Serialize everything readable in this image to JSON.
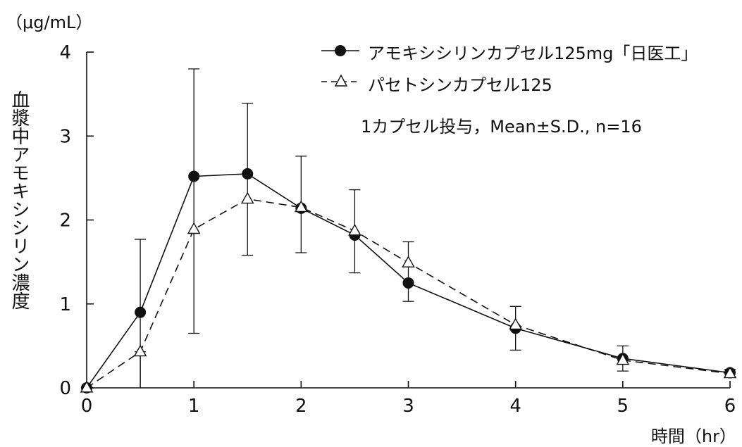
{
  "chart_data": {
    "type": "line",
    "unit_label": "（μg/mL）",
    "ylabel": "血漿中アモキシシリン濃度",
    "xlabel": "時間（hr）",
    "xlim": [
      0,
      6
    ],
    "ylim": [
      0,
      4
    ],
    "x_ticks": [
      "0",
      "1",
      "2",
      "3",
      "4",
      "5",
      "6"
    ],
    "y_ticks": [
      "0",
      "1",
      "2",
      "3",
      "4"
    ],
    "note": "1カプセル投与，Mean±S.D., n=16",
    "series": [
      {
        "name": "アモキシシリンカプセル125mg「日医工」",
        "marker": "filled-circle",
        "line": "solid",
        "color": "#111111",
        "x": [
          0,
          0.5,
          1,
          1.5,
          2,
          2.5,
          3,
          4,
          5,
          6
        ],
        "y": [
          0,
          0.9,
          2.52,
          2.55,
          2.14,
          1.82,
          1.25,
          0.71,
          0.35,
          0.18
        ],
        "err_upper": [
          0,
          1.77,
          3.8,
          3.39,
          2.76,
          2.36,
          1.74,
          0.97,
          0.5,
          0.22
        ],
        "err_lower": [
          0,
          0,
          0.65,
          1.58,
          1.61,
          1.37,
          1.03,
          0.45,
          0.2,
          0.13
        ]
      },
      {
        "name": "パセトシンカプセル125",
        "marker": "open-triangle",
        "line": "dashed",
        "color": "#111111",
        "x": [
          0,
          0.5,
          1,
          1.5,
          2,
          2.5,
          3,
          4,
          5,
          6
        ],
        "y": [
          0,
          0.43,
          1.89,
          2.25,
          2.15,
          1.87,
          1.49,
          0.75,
          0.33,
          0.17
        ],
        "err_upper": [
          0,
          0.43,
          1.89,
          2.25,
          2.15,
          1.87,
          1.49,
          0.75,
          0.33,
          0.17
        ],
        "err_lower": [
          0,
          0,
          1.89,
          2.25,
          2.15,
          1.87,
          1.49,
          0.75,
          0.33,
          0.17
        ]
      }
    ]
  }
}
